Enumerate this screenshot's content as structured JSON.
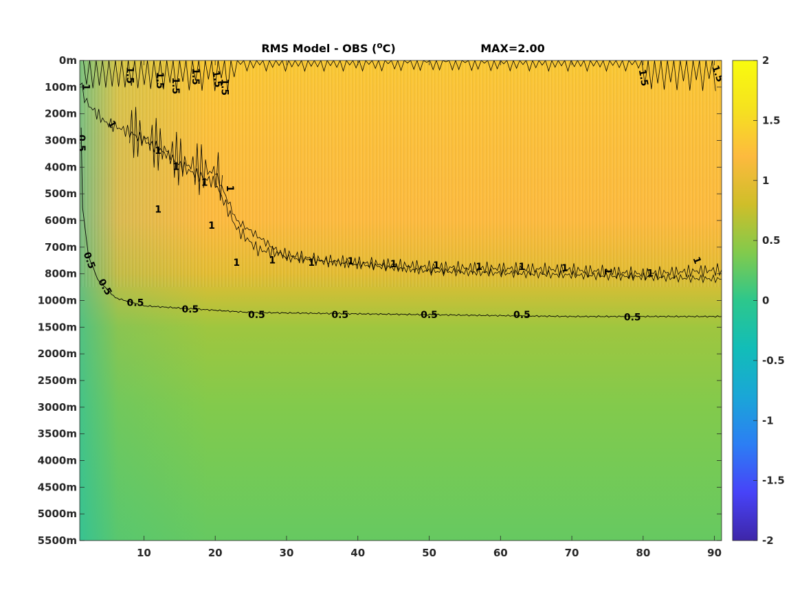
{
  "chart_data": {
    "type": "heatmap",
    "title_main": "RMS Model - OBS (",
    "title_unit_sup": "o",
    "title_unit_tail": "C)",
    "title_max": "MAX=2.00",
    "x_ticks": [
      10,
      20,
      30,
      40,
      50,
      60,
      70,
      80,
      90
    ],
    "xlim": [
      1,
      91
    ],
    "y_tick_labels": [
      "0m",
      "100m",
      "200m",
      "300m",
      "400m",
      "500m",
      "600m",
      "700m",
      "800m",
      "1000m",
      "1500m",
      "2000m",
      "2500m",
      "3000m",
      "3500m",
      "4000m",
      "4500m",
      "5000m",
      "5500m"
    ],
    "colorbar_ticks": [
      "2",
      "1.5",
      "1",
      "0.5",
      "0",
      "-0.5",
      "-1",
      "-1.5",
      "-2"
    ],
    "clim": [
      -2,
      2
    ],
    "colormap": [
      "#3e26a8",
      "#4743f8",
      "#2c7ef4",
      "#1aa6d7",
      "#12bdb8",
      "#2dc78c",
      "#82ca4c",
      "#cfbe29",
      "#fdba3e",
      "#f5e21f",
      "#f9fb0e"
    ],
    "surface_rms": [
      {
        "depth_level": 0,
        "values": [
          1.35,
          1.35,
          1.35,
          1.35,
          1.35,
          1.35,
          1.35,
          1.35,
          1.35,
          1.35
        ]
      },
      {
        "depth_level": 1,
        "values": [
          1.25,
          1.3,
          1.3,
          1.3,
          1.3,
          1.3,
          1.3,
          1.3,
          1.3,
          1.3
        ]
      },
      {
        "depth_level": 3,
        "values": [
          0.9,
          1.2,
          1.25,
          1.25,
          1.25,
          1.25,
          1.25,
          1.25,
          1.25,
          1.25
        ]
      },
      {
        "depth_level": 6,
        "values": [
          0.8,
          1.05,
          1.2,
          1.2,
          1.2,
          1.2,
          1.2,
          1.2,
          1.2,
          1.2
        ]
      },
      {
        "depth_level": 8,
        "values": [
          0.6,
          0.85,
          0.95,
          0.97,
          0.97,
          0.97,
          0.97,
          0.97,
          0.97,
          0.97
        ]
      },
      {
        "depth_level": 10,
        "values": [
          0.45,
          0.5,
          0.55,
          0.55,
          0.55,
          0.55,
          0.55,
          0.55,
          0.55,
          0.55
        ]
      },
      {
        "depth_level": 13,
        "values": [
          0.35,
          0.38,
          0.4,
          0.4,
          0.4,
          0.4,
          0.4,
          0.4,
          0.4,
          0.4
        ]
      },
      {
        "depth_level": 18,
        "values": [
          0.2,
          0.22,
          0.25,
          0.27,
          0.27,
          0.27,
          0.27,
          0.27,
          0.27,
          0.27
        ]
      }
    ],
    "contour_labels": [
      {
        "text": "1.5",
        "x": 8,
        "level": 0.55,
        "rot": 90
      },
      {
        "text": "1.5",
        "x": 12.2,
        "level": 0.75,
        "rot": 90
      },
      {
        "text": "1.5",
        "x": 14.4,
        "level": 0.95,
        "rot": 90
      },
      {
        "text": "1.5",
        "x": 17.2,
        "level": 0.6,
        "rot": 90
      },
      {
        "text": "1.5",
        "x": 20.2,
        "level": 0.7,
        "rot": 80
      },
      {
        "text": "1.5",
        "x": 21.3,
        "level": 1.0,
        "rot": 90
      },
      {
        "text": "1.5",
        "x": 80,
        "level": 0.65,
        "rot": 80
      },
      {
        "text": "1.5",
        "x": 90.4,
        "level": 0.5,
        "rot": 70
      },
      {
        "text": "1",
        "x": 1.8,
        "level": 1.0,
        "rot": 90
      },
      {
        "text": "0.5",
        "x": 1.2,
        "level": 3.1,
        "rot": 90
      },
      {
        "text": "1",
        "x": 5.5,
        "level": 2.4,
        "rot": 60
      },
      {
        "text": "0.5",
        "x": 2.3,
        "level": 7.5,
        "rot": 70
      },
      {
        "text": "0.5",
        "x": 4.5,
        "level": 8.5,
        "rot": 60
      },
      {
        "text": "0.5",
        "x": 8.8,
        "level": 9.1,
        "rot": 0
      },
      {
        "text": "0.5",
        "x": 16.5,
        "level": 9.35,
        "rot": 0
      },
      {
        "text": "0.5",
        "x": 25.8,
        "level": 9.55,
        "rot": 0
      },
      {
        "text": "0.5",
        "x": 37.5,
        "level": 9.55,
        "rot": 0
      },
      {
        "text": "0.5",
        "x": 50,
        "level": 9.55,
        "rot": 0
      },
      {
        "text": "0.5",
        "x": 63,
        "level": 9.55,
        "rot": 0
      },
      {
        "text": "0.5",
        "x": 78.5,
        "level": 9.65,
        "rot": 0
      },
      {
        "text": "1",
        "x": 12,
        "level": 3.4,
        "rot": 0
      },
      {
        "text": "1",
        "x": 14.5,
        "level": 4.0,
        "rot": 0
      },
      {
        "text": "1",
        "x": 18.5,
        "level": 4.6,
        "rot": 0
      },
      {
        "text": "1",
        "x": 22,
        "level": 4.8,
        "rot": 90
      },
      {
        "text": "1",
        "x": 12,
        "level": 5.6,
        "rot": 0
      },
      {
        "text": "1",
        "x": 19.5,
        "level": 6.2,
        "rot": 0
      },
      {
        "text": "1",
        "x": 23,
        "level": 7.6,
        "rot": 0
      },
      {
        "text": "1",
        "x": 28,
        "level": 7.5,
        "rot": 0
      },
      {
        "text": "1",
        "x": 33.5,
        "level": 7.6,
        "rot": 0
      },
      {
        "text": "1",
        "x": 39,
        "level": 7.55,
        "rot": 0
      },
      {
        "text": "1",
        "x": 45,
        "level": 7.65,
        "rot": 0
      },
      {
        "text": "1",
        "x": 51,
        "level": 7.7,
        "rot": 0
      },
      {
        "text": "1",
        "x": 57,
        "level": 7.75,
        "rot": 0
      },
      {
        "text": "1",
        "x": 63,
        "level": 7.75,
        "rot": 0
      },
      {
        "text": "1",
        "x": 69,
        "level": 7.8,
        "rot": 0
      },
      {
        "text": "1",
        "x": 75,
        "level": 7.9,
        "rot": 90
      },
      {
        "text": "1",
        "x": 81,
        "level": 8.0,
        "rot": 0
      },
      {
        "text": "1",
        "x": 87.5,
        "level": 7.5,
        "rot": 70
      }
    ]
  }
}
